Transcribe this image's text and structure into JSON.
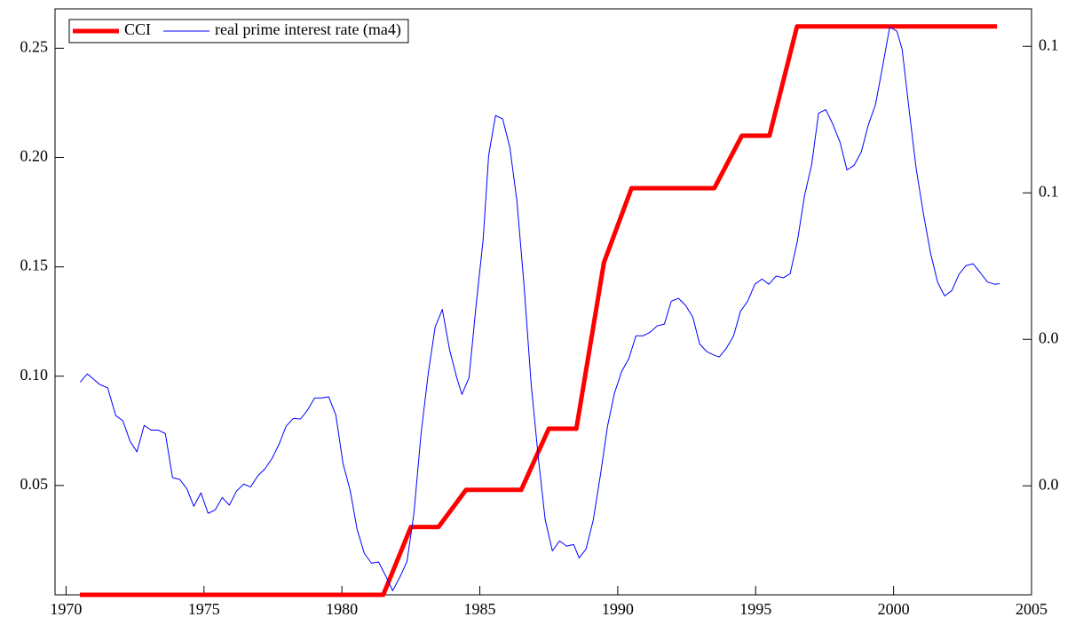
{
  "chart_data": {
    "type": "line",
    "xlim": [
      1969.6,
      2005
    ],
    "xticks": [
      1970,
      1975,
      1980,
      1985,
      1990,
      1995,
      2000,
      2005
    ],
    "ylim": [
      0,
      0.268
    ],
    "yticks": [
      0.05,
      {
        "value": 0.1,
        "label": "0.10"
      },
      0.15,
      {
        "value": 0.2,
        "label": "0.20"
      },
      0.25
    ],
    "y2lim": [
      0.0314,
      0.1314
    ],
    "y2ticks": [
      {
        "value": 0.05,
        "label": "0.0"
      },
      {
        "value": 0.075,
        "label": "0.0"
      },
      {
        "value": 0.1,
        "label": "0.1"
      },
      {
        "value": 0.125,
        "label": "0.1"
      }
    ],
    "legend": "upper left",
    "series": [
      {
        "name": "CCI",
        "color": "#ff0000",
        "x": [
          1970.5,
          1981.5,
          1982.5,
          1983.5,
          1984.5,
          1986.5,
          1987.5,
          1988.5,
          1989.5,
          1990.5,
          1993.5,
          1994.5,
          1995.5,
          1996.5,
          2003.75
        ],
        "values": [
          0,
          0,
          0.031,
          0.031,
          0.048,
          0.048,
          0.076,
          0.076,
          0.152,
          0.186,
          0.186,
          0.21,
          0.21,
          0.26,
          0.26
        ]
      },
      {
        "name": "real prime interest rate (ma4)",
        "color": "#0000ff",
        "axis": "y2",
        "x": [
          1970.51,
          1970.77,
          1971.0,
          1971.22,
          1971.51,
          1971.8,
          1972.06,
          1972.32,
          1972.57,
          1972.83,
          1973.09,
          1973.35,
          1973.6,
          1973.86,
          1974.12,
          1974.38,
          1974.63,
          1974.89,
          1975.15,
          1975.41,
          1975.66,
          1975.92,
          1976.18,
          1976.44,
          1976.69,
          1976.95,
          1977.21,
          1977.47,
          1977.72,
          1977.98,
          1978.24,
          1978.5,
          1978.75,
          1979.01,
          1979.27,
          1979.52,
          1979.78,
          1980.04,
          1980.3,
          1980.55,
          1980.81,
          1981.07,
          1981.33,
          1981.58,
          1981.84,
          1982.1,
          1982.36,
          1982.61,
          1982.87,
          1983.13,
          1983.38,
          1983.64,
          1983.9,
          1984.16,
          1984.35,
          1984.61,
          1984.86,
          1985.12,
          1985.32,
          1985.57,
          1985.83,
          1986.09,
          1986.34,
          1986.6,
          1986.86,
          1987.12,
          1987.37,
          1987.63,
          1987.89,
          1988.15,
          1988.4,
          1988.6,
          1988.85,
          1989.11,
          1989.37,
          1989.63,
          1989.88,
          1990.14,
          1990.4,
          1990.66,
          1990.91,
          1991.17,
          1991.43,
          1991.69,
          1991.94,
          1992.2,
          1992.46,
          1992.72,
          1992.97,
          1993.23,
          1993.49,
          1993.68,
          1993.94,
          1994.2,
          1994.45,
          1994.71,
          1994.97,
          1995.23,
          1995.48,
          1995.74,
          1996.0,
          1996.25,
          1996.51,
          1996.77,
          1997.03,
          1997.28,
          1997.54,
          1997.8,
          1998.06,
          1998.31,
          1998.57,
          1998.83,
          1999.09,
          1999.34,
          1999.6,
          1999.86,
          2000.12,
          2000.31,
          2000.57,
          2000.82,
          2001.08,
          2001.34,
          2001.6,
          2001.85,
          2002.11,
          2002.37,
          2002.63,
          2002.88,
          2003.14,
          2003.4,
          2003.66,
          2003.85
        ],
        "values": [
          0.0677,
          0.0691,
          0.0682,
          0.0673,
          0.0667,
          0.062,
          0.0611,
          0.0576,
          0.0558,
          0.0603,
          0.0595,
          0.0595,
          0.0589,
          0.0514,
          0.0511,
          0.0495,
          0.0465,
          0.0488,
          0.0453,
          0.0459,
          0.048,
          0.0467,
          0.0491,
          0.0503,
          0.0498,
          0.0517,
          0.0529,
          0.0547,
          0.0571,
          0.0602,
          0.0615,
          0.0614,
          0.0629,
          0.065,
          0.065,
          0.0652,
          0.0621,
          0.0538,
          0.0492,
          0.0426,
          0.0385,
          0.0368,
          0.037,
          0.0347,
          0.0321,
          0.0344,
          0.0371,
          0.0453,
          0.0589,
          0.0692,
          0.0771,
          0.0801,
          0.0733,
          0.0685,
          0.0656,
          0.0685,
          0.0806,
          0.092,
          0.1064,
          0.1132,
          0.1126,
          0.1077,
          0.0988,
          0.0844,
          0.0674,
          0.0548,
          0.0442,
          0.0389,
          0.0406,
          0.0397,
          0.04,
          0.0377,
          0.0392,
          0.0441,
          0.0518,
          0.0602,
          0.0658,
          0.0695,
          0.0717,
          0.0756,
          0.0756,
          0.0762,
          0.0773,
          0.0776,
          0.0815,
          0.082,
          0.0808,
          0.0788,
          0.0742,
          0.0729,
          0.0723,
          0.072,
          0.0735,
          0.0756,
          0.0798,
          0.0815,
          0.0844,
          0.0853,
          0.0844,
          0.0858,
          0.0855,
          0.0862,
          0.0917,
          0.0995,
          0.1048,
          0.1136,
          0.1142,
          0.1117,
          0.1086,
          0.1039,
          0.1047,
          0.107,
          0.1117,
          0.115,
          0.1215,
          0.1283,
          0.1276,
          0.1245,
          0.1139,
          0.1041,
          0.0965,
          0.0897,
          0.0847,
          0.0824,
          0.0833,
          0.0861,
          0.0876,
          0.0879,
          0.0864,
          0.0848,
          0.0844,
          0.0845
        ]
      }
    ]
  }
}
